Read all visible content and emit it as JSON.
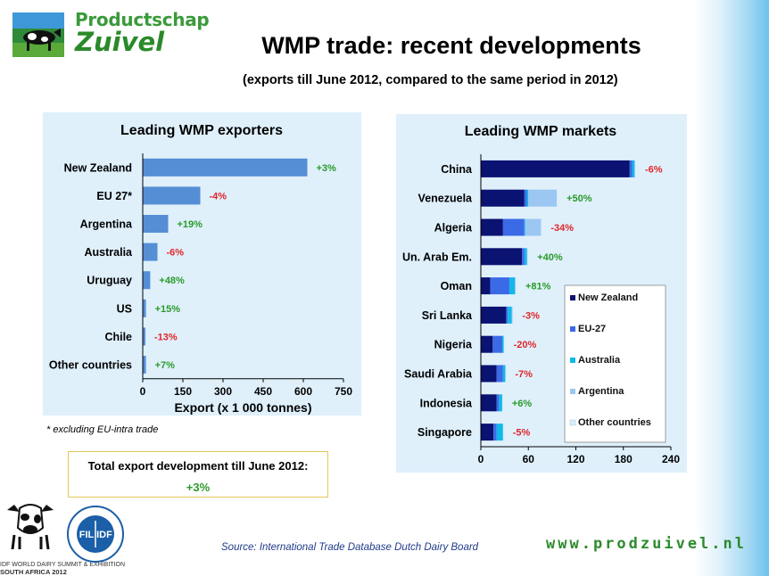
{
  "brand": {
    "line1": "Productschap",
    "line2": "Zuivel"
  },
  "title": "WMP trade: recent developments",
  "subtitle": "(exports till June 2012, compared to the same period in 2012)",
  "footnote": "* excluding EU-intra trade",
  "total_box": {
    "label": "Total export development till June 2012:",
    "value": "+3%"
  },
  "source": "Source: International Trade Database Dutch Dairy Board",
  "website": "www.prodzuivel.nl",
  "summit": {
    "line1": "IDF WORLD DAIRY SUMMIT & EXHIBITION",
    "line2": "SOUTH AFRICA 2012"
  },
  "fil_logo": {
    "left": "FIL",
    "right": "IDF"
  },
  "colors": {
    "bar_exporters": "#558ed5",
    "new_zealand": "#0a1272",
    "eu27": "#3b6ae6",
    "australia": "#12b8ea",
    "argentina": "#9bc7f2",
    "other_countries": "#d8efff",
    "positive": "#2a9a2a",
    "negative": "#e0262a",
    "panel_bg": "#dff0fb"
  },
  "chart_data": [
    {
      "type": "bar",
      "orientation": "horizontal",
      "title": "Leading WMP exporters",
      "xlabel": "Export (x 1 000 tonnes)",
      "ylabel": "",
      "xlim": [
        0,
        750
      ],
      "xticks": [
        0,
        150,
        300,
        450,
        600,
        750
      ],
      "grid": false,
      "categories": [
        "New Zealand",
        "EU 27*",
        "Argentina",
        "Australia",
        "Uruguay",
        "US",
        "Chile",
        "Other countries"
      ],
      "values": [
        615,
        215,
        95,
        55,
        28,
        12,
        10,
        12
      ],
      "changes": [
        "+3%",
        "-4%",
        "+19%",
        "-6%",
        "+48%",
        "+15%",
        "-13%",
        "+7%"
      ]
    },
    {
      "type": "bar",
      "orientation": "horizontal",
      "stacked": true,
      "title": "Leading WMP markets",
      "xlabel": "",
      "ylabel": "",
      "xlim": [
        0,
        240
      ],
      "xticks": [
        0,
        60,
        120,
        180,
        240
      ],
      "grid": false,
      "legend": "right",
      "categories": [
        "China",
        "Venezuela",
        "Algeria",
        "Un. Arab Em.",
        "Oman",
        "Sri Lanka",
        "Nigeria",
        "Saudi Arabia",
        "Indonesia",
        "Singapore"
      ],
      "changes": [
        "-6%",
        "+50%",
        "-34%",
        "+40%",
        "+81%",
        "-3%",
        "-20%",
        "-7%",
        "+6%",
        "-5%"
      ],
      "series": [
        {
          "name": "New Zealand",
          "values": [
            188,
            55,
            28,
            52,
            12,
            32,
            15,
            20,
            20,
            16
          ]
        },
        {
          "name": "EU-27",
          "values": [
            3,
            3,
            27,
            3,
            24,
            2,
            12,
            8,
            3,
            4
          ]
        },
        {
          "name": "Australia",
          "values": [
            3,
            2,
            1,
            3,
            7,
            5,
            2,
            3,
            4,
            8
          ]
        },
        {
          "name": "Argentina",
          "values": [
            1,
            36,
            20,
            1,
            1,
            1,
            0,
            0,
            0,
            0
          ]
        },
        {
          "name": "Other countries",
          "values": [
            1,
            1,
            1,
            1,
            1,
            1,
            1,
            1,
            1,
            1
          ]
        }
      ]
    }
  ]
}
